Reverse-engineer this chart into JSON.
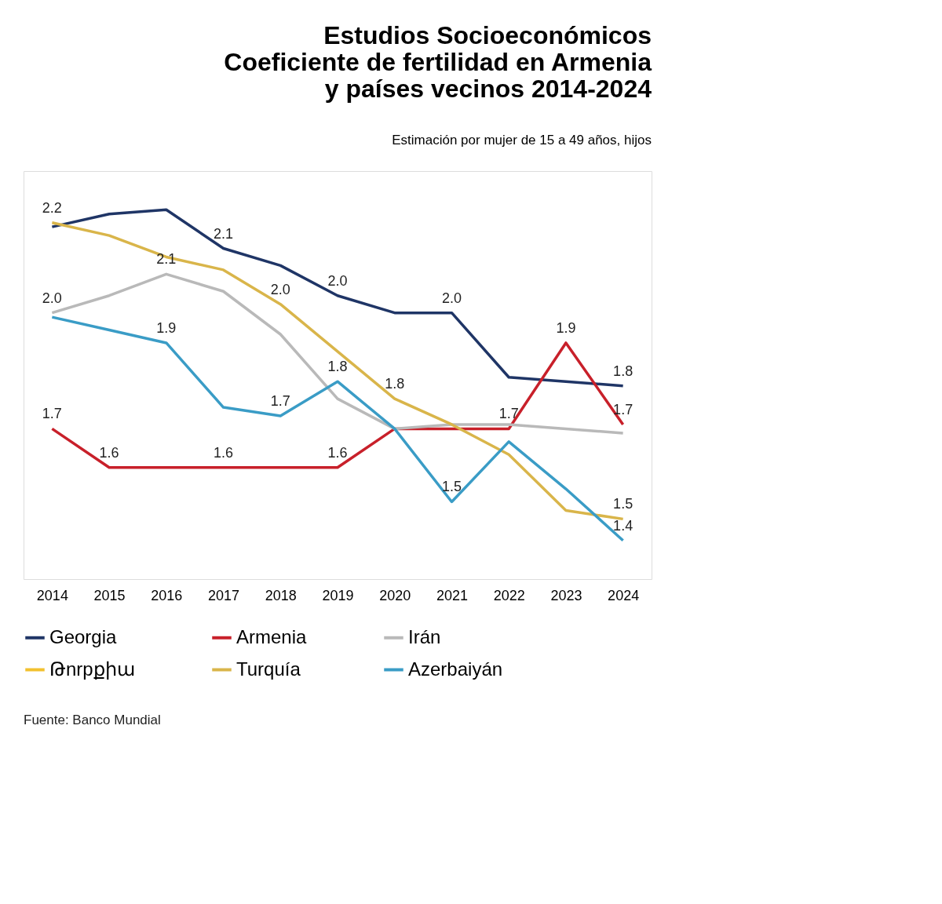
{
  "chart_data": {
    "type": "line",
    "title": [
      "Estudios Socioeconómicos",
      "Coeficiente de fertilidad en Armenia",
      "y países vecinos 2014-2024"
    ],
    "subtitle": "Estimación por mujer de 15 a 49 años, hijos",
    "categories": [
      "2014",
      "2015",
      "2016",
      "2017",
      "2018",
      "2019",
      "2020",
      "2021",
      "2022",
      "2023",
      "2024"
    ],
    "ylim": [
      1.35,
      2.3
    ],
    "tick_labels": "x",
    "legend": "bottom",
    "grid": false,
    "marker": "none",
    "line_style": "solid",
    "series": [
      {
        "name": "Georgia",
        "color": "#1f3566",
        "values": [
          2.17,
          2.2,
          2.21,
          2.12,
          2.08,
          2.01,
          1.97,
          1.97,
          1.82,
          1.81,
          1.8
        ],
        "value_labels": [
          null,
          null,
          null,
          "2.1",
          null,
          "2.0",
          null,
          "2.0",
          null,
          null,
          "1.8"
        ]
      },
      {
        "name": "Armenia",
        "color": "#c8202a",
        "values": [
          1.7,
          1.61,
          1.61,
          1.61,
          1.61,
          1.61,
          1.7,
          1.7,
          1.7,
          1.9,
          1.71
        ],
        "value_labels": [
          "1.7",
          "1.6",
          null,
          "1.6",
          null,
          "1.6",
          null,
          null,
          "1.7",
          "1.9",
          "1.7"
        ]
      },
      {
        "name": "Irán",
        "color": "#b9b9b9",
        "values": [
          1.97,
          2.01,
          2.06,
          2.02,
          1.92,
          1.77,
          1.7,
          1.71,
          1.71,
          1.7,
          1.69
        ],
        "value_labels": [
          "2.0",
          null,
          "2.1",
          null,
          null,
          null,
          null,
          null,
          null,
          null,
          null
        ]
      },
      {
        "name": "Թnrpքիա",
        "color": "#f2c12e",
        "values": [
          null,
          null,
          null,
          null,
          null,
          null,
          null,
          null,
          null,
          null,
          null
        ]
      },
      {
        "name": "Turquía",
        "color": "#d9b54a",
        "values": [
          2.18,
          2.15,
          2.1,
          2.07,
          1.99,
          1.88,
          1.77,
          1.71,
          1.64,
          1.51,
          1.49
        ],
        "value_labels": [
          "2.2",
          null,
          null,
          null,
          "2.0",
          null,
          "1.8",
          null,
          null,
          null,
          "1.5"
        ]
      },
      {
        "name": "Azerbaiyán",
        "color": "#3a9cc6",
        "values": [
          1.96,
          1.93,
          1.9,
          1.75,
          1.73,
          1.81,
          1.7,
          1.53,
          1.67,
          1.56,
          1.44
        ],
        "value_labels": [
          null,
          null,
          "1.9",
          null,
          "1.7",
          "1.8",
          null,
          "1.5",
          null,
          null,
          "1.4"
        ]
      }
    ],
    "annotations": [
      "Fuente: Banco Mundial"
    ]
  }
}
